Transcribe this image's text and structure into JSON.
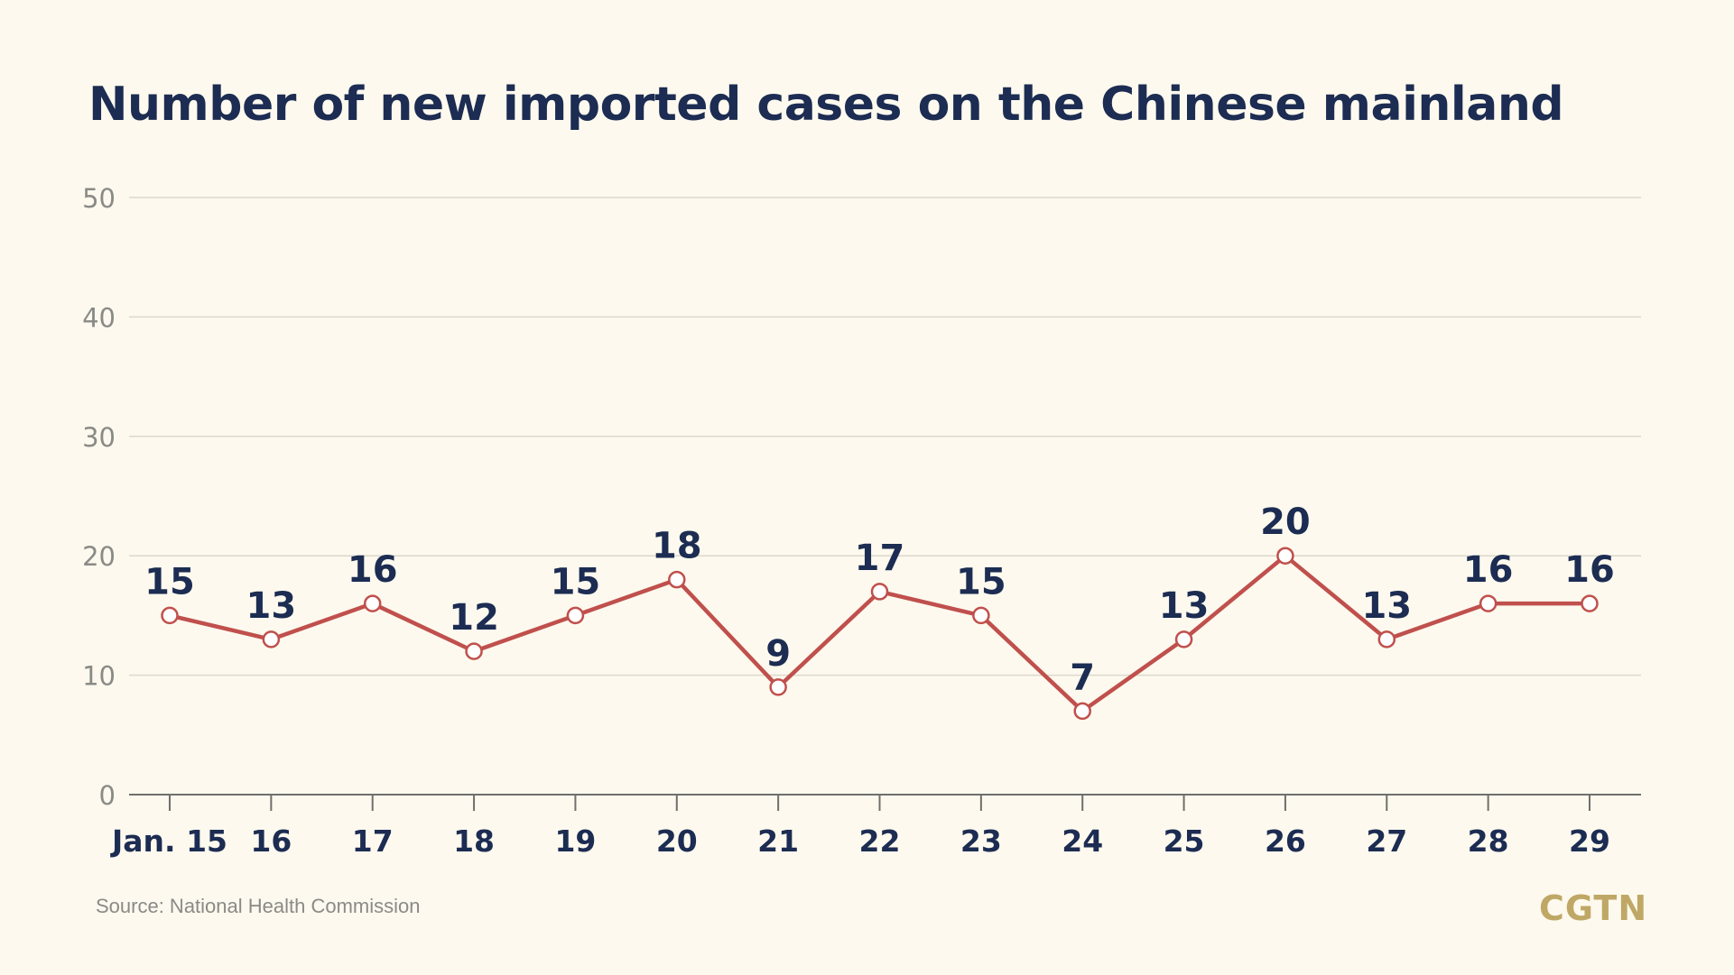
{
  "colors": {
    "background": "#fdf9ee",
    "title": "#1c2c52",
    "line": "#c0504d",
    "marker_fill": "#ffffff",
    "data_label": "#1c2c52",
    "grid": "#dcd8cc",
    "y_tick": "#8a8a86",
    "x_tick": "#1c2c52",
    "source": "#8a8a86",
    "brand": "#bfa865"
  },
  "source": "Source: National Health Commission",
  "brand": "CGTN",
  "chart_data": {
    "type": "line",
    "title": "Number of new imported cases on the Chinese mainland",
    "xlabel": "",
    "ylabel": "",
    "categories": [
      "Jan. 15",
      "16",
      "17",
      "18",
      "19",
      "20",
      "21",
      "22",
      "23",
      "24",
      "25",
      "26",
      "27",
      "28",
      "29"
    ],
    "series": [
      {
        "values": [
          15,
          13,
          16,
          12,
          15,
          18,
          9,
          17,
          15,
          7,
          13,
          20,
          13,
          16,
          16
        ]
      }
    ],
    "ylim": [
      0,
      50
    ],
    "yticks": [
      0,
      10,
      20,
      30,
      40,
      50
    ],
    "grid": true,
    "data_labels": true,
    "legend": "none"
  }
}
